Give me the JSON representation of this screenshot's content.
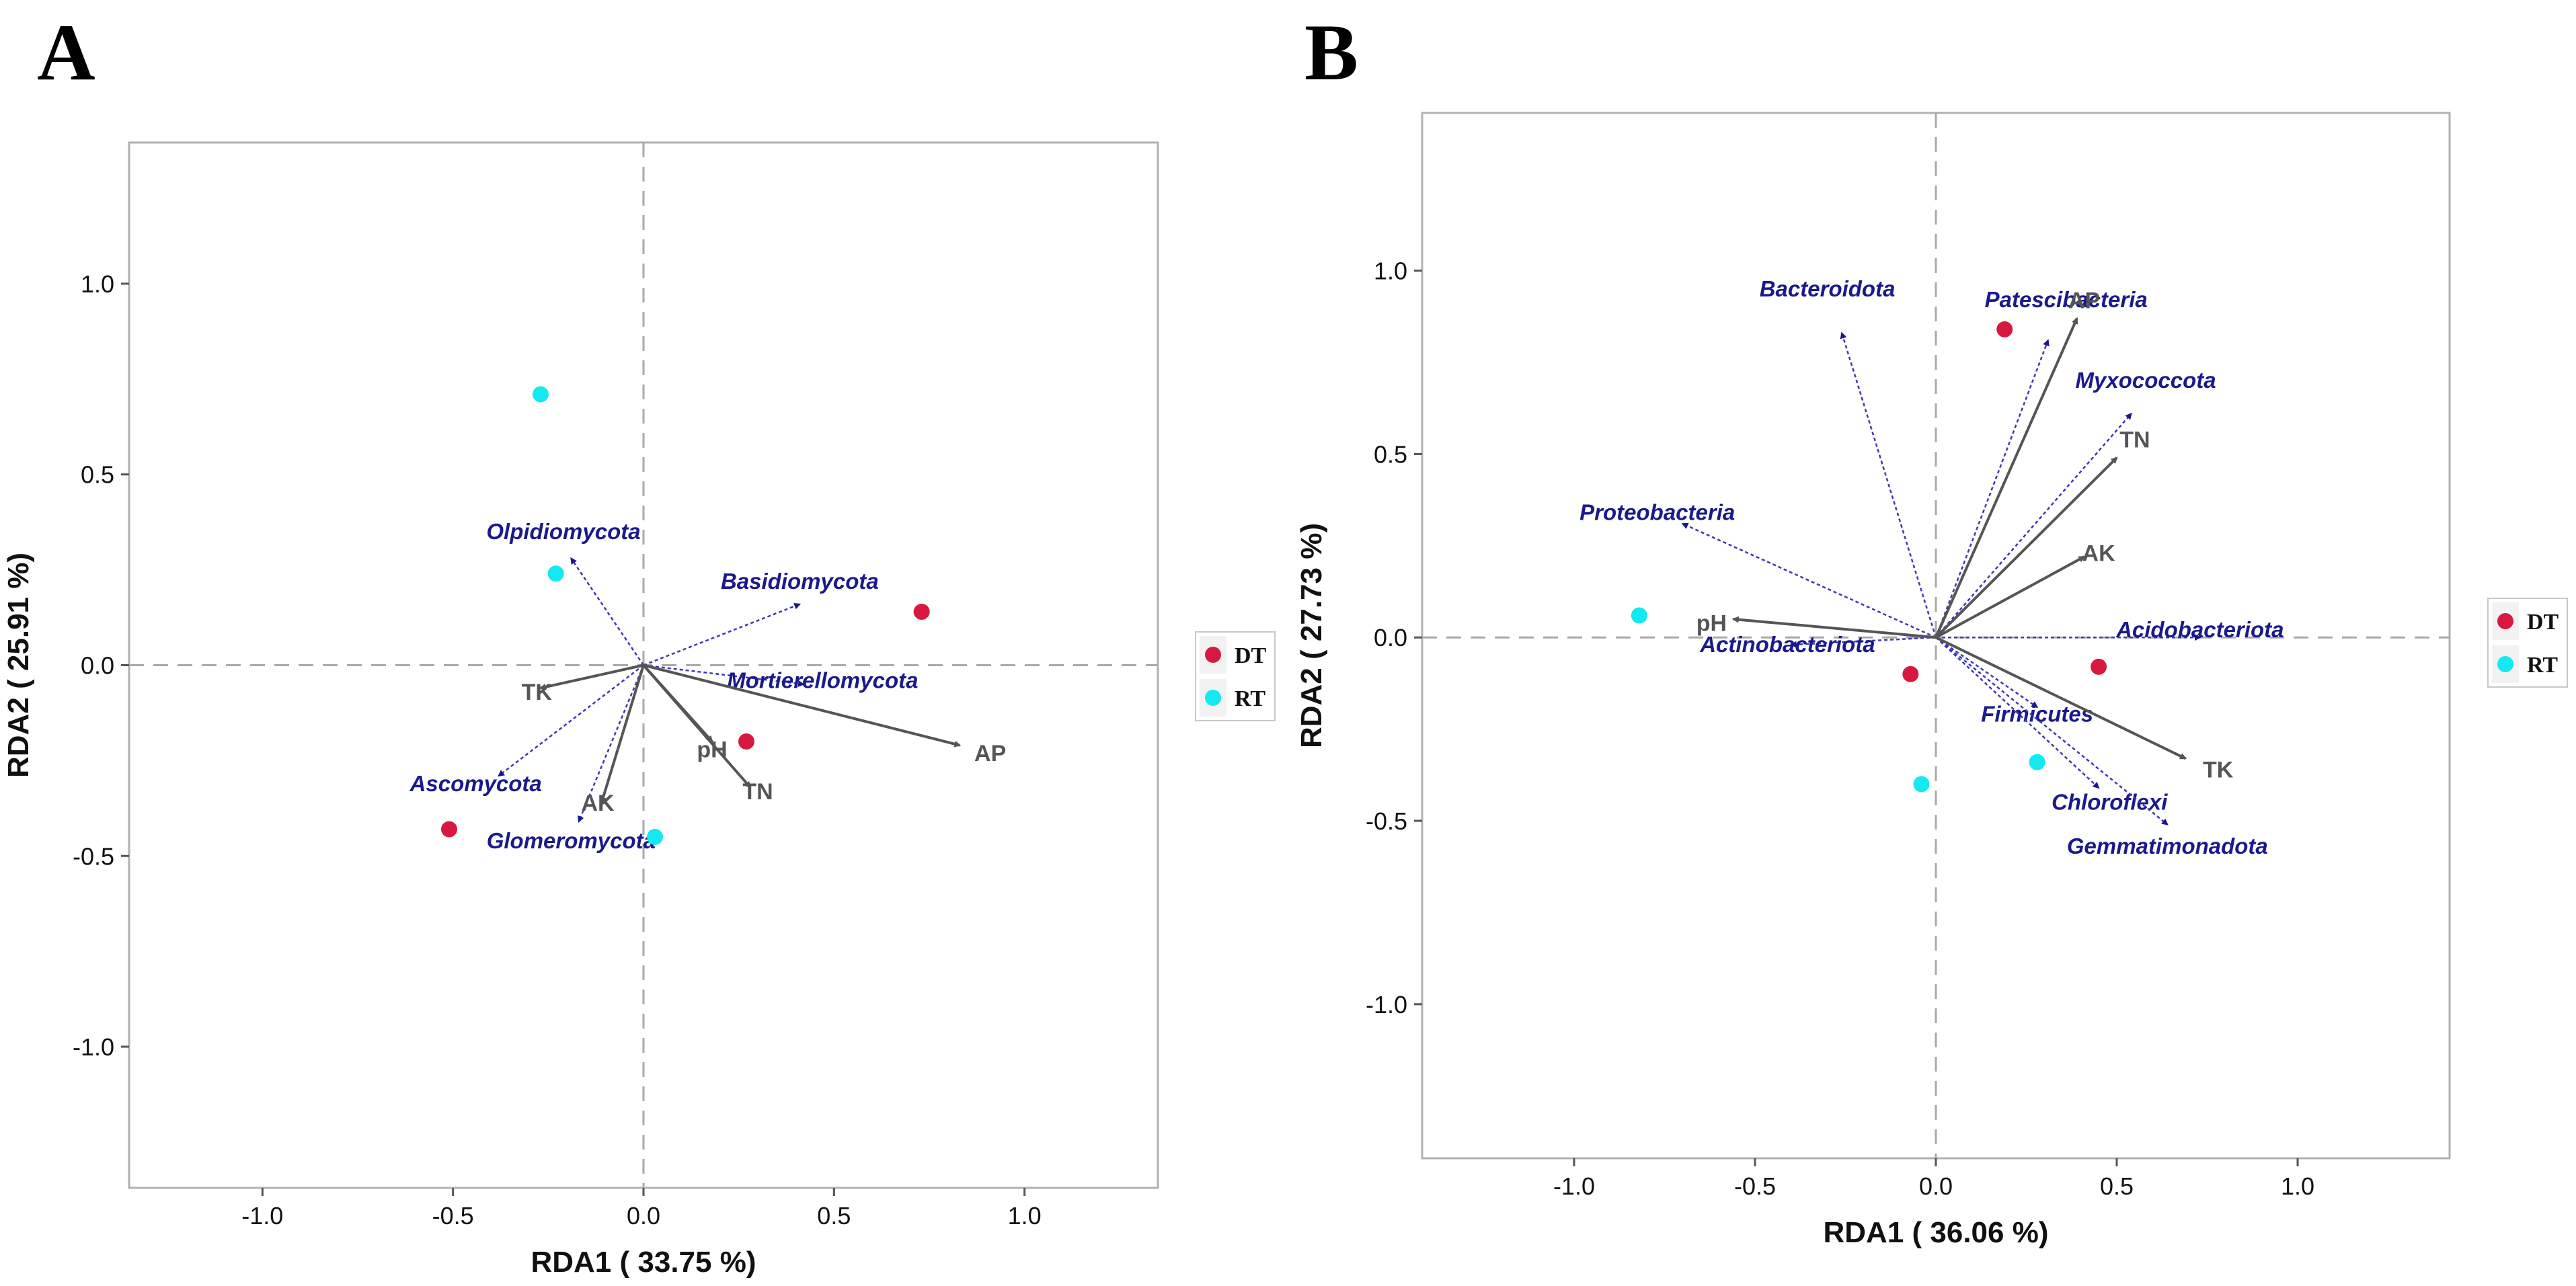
{
  "colors": {
    "DT": "#d7193f",
    "RT": "#14e8f0",
    "env_arrow": "#555555",
    "taxon_arrow": "#3b37b8",
    "taxon_text": "#1a1a8c",
    "frame": "#b0b0b0"
  },
  "chart_data": [
    {
      "panel": "A",
      "type": "scatter",
      "xlabel": "RDA1 ( 33.75 %)",
      "ylabel": "RDA2 ( 25.91 %)",
      "xlim": [
        -1.35,
        1.35
      ],
      "ylim": [
        -1.37,
        1.37
      ],
      "xticks": [
        {
          "v": -1.0,
          "label": "-1.0"
        },
        {
          "v": -0.5,
          "label": "-0.5"
        },
        {
          "v": 0.0,
          "label": "0.0"
        },
        {
          "v": 0.5,
          "label": "0.5"
        },
        {
          "v": 1.0,
          "label": "1.0"
        }
      ],
      "yticks": [
        {
          "v": -1.0,
          "label": "-1.0"
        },
        {
          "v": -0.5,
          "label": "-0.5"
        },
        {
          "v": 0.0,
          "label": "0.0"
        },
        {
          "v": 0.5,
          "label": "0.5"
        },
        {
          "v": 1.0,
          "label": "1.0"
        }
      ],
      "points": [
        {
          "group": "DT",
          "x": 0.73,
          "y": 0.14
        },
        {
          "group": "DT",
          "x": 0.27,
          "y": -0.2
        },
        {
          "group": "DT",
          "x": -0.51,
          "y": -0.43
        },
        {
          "group": "RT",
          "x": -0.27,
          "y": 0.71
        },
        {
          "group": "RT",
          "x": -0.23,
          "y": 0.24
        },
        {
          "group": "RT",
          "x": 0.03,
          "y": -0.45
        }
      ],
      "env_vectors": [
        {
          "name": "TK",
          "x": -0.27,
          "y": -0.06,
          "lx": -0.28,
          "ly": -0.07
        },
        {
          "name": "pH",
          "x": 0.18,
          "y": -0.2,
          "lx": 0.18,
          "ly": -0.22
        },
        {
          "name": "TN",
          "x": 0.28,
          "y": -0.32,
          "lx": 0.3,
          "ly": -0.33
        },
        {
          "name": "AK",
          "x": -0.11,
          "y": -0.36,
          "lx": -0.12,
          "ly": -0.36
        },
        {
          "name": "AP",
          "x": 0.83,
          "y": -0.21,
          "lx": 0.91,
          "ly": -0.23
        }
      ],
      "taxon_vectors": [
        {
          "name": "Olpidiomycota",
          "x": -0.19,
          "y": 0.28,
          "lx": -0.21,
          "ly": 0.33
        },
        {
          "name": "Basidiomycota",
          "x": 0.41,
          "y": 0.16,
          "lx": 0.41,
          "ly": 0.2
        },
        {
          "name": "Mortierellomycota",
          "x": 0.42,
          "y": -0.05,
          "lx": 0.47,
          "ly": -0.06
        },
        {
          "name": "Ascomycota",
          "x": -0.38,
          "y": -0.29,
          "lx": -0.44,
          "ly": -0.33
        },
        {
          "name": "Glomeromycota",
          "x": -0.17,
          "y": -0.41,
          "lx": -0.19,
          "ly": -0.48
        }
      ],
      "legend": [
        {
          "group": "DT",
          "label": "DT"
        },
        {
          "group": "RT",
          "label": "RT"
        }
      ]
    },
    {
      "panel": "B",
      "type": "scatter",
      "xlabel": "RDA1 ( 36.06 %)",
      "ylabel": "RDA2 ( 27.73 %)",
      "xlim": [
        -1.42,
        1.42
      ],
      "ylim": [
        -1.42,
        1.43
      ],
      "xticks": [
        {
          "v": -1.0,
          "label": "-1.0"
        },
        {
          "v": -0.5,
          "label": "-0.5"
        },
        {
          "v": 0.0,
          "label": "0.0"
        },
        {
          "v": 0.5,
          "label": "0.5"
        },
        {
          "v": 1.0,
          "label": "1.0"
        }
      ],
      "yticks": [
        {
          "v": -1.0,
          "label": "-1.0"
        },
        {
          "v": -0.5,
          "label": "-0.5"
        },
        {
          "v": 0.0,
          "label": "0.0"
        },
        {
          "v": 0.5,
          "label": "0.5"
        },
        {
          "v": 1.0,
          "label": "1.0"
        }
      ],
      "points": [
        {
          "group": "DT",
          "x": 0.19,
          "y": 0.84
        },
        {
          "group": "DT",
          "x": -0.07,
          "y": -0.1
        },
        {
          "group": "DT",
          "x": 0.45,
          "y": -0.08
        },
        {
          "group": "RT",
          "x": -0.82,
          "y": 0.06
        },
        {
          "group": "RT",
          "x": -0.04,
          "y": -0.4
        },
        {
          "group": "RT",
          "x": 0.28,
          "y": -0.34
        }
      ],
      "env_vectors": [
        {
          "name": "AP",
          "x": 0.39,
          "y": 0.87,
          "lx": 0.41,
          "ly": 0.92
        },
        {
          "name": "TN",
          "x": 0.5,
          "y": 0.49,
          "lx": 0.55,
          "ly": 0.54
        },
        {
          "name": "AK",
          "x": 0.41,
          "y": 0.22,
          "lx": 0.45,
          "ly": 0.23
        },
        {
          "name": "pH",
          "x": -0.56,
          "y": 0.05,
          "lx": -0.62,
          "ly": 0.04
        },
        {
          "name": "TK",
          "x": 0.69,
          "y": -0.33,
          "lx": 0.78,
          "ly": -0.36
        }
      ],
      "taxon_vectors": [
        {
          "name": "Bacteroidota",
          "x": -0.26,
          "y": 0.83,
          "lx": -0.3,
          "ly": 0.93
        },
        {
          "name": "Patescibacteria",
          "x": 0.31,
          "y": 0.81,
          "lx": 0.36,
          "ly": 0.9
        },
        {
          "name": "Myxococcota",
          "x": 0.54,
          "y": 0.61,
          "lx": 0.58,
          "ly": 0.68
        },
        {
          "name": "Proteobacteria",
          "x": -0.7,
          "y": 0.31,
          "lx": -0.77,
          "ly": 0.32
        },
        {
          "name": "Actinobacteriota",
          "x": -0.4,
          "y": -0.02,
          "lx": -0.41,
          "ly": -0.04
        },
        {
          "name": "Acidobacteriota",
          "x": 0.73,
          "y": 0.0,
          "lx": 0.73,
          "ly": 0.0
        },
        {
          "name": "Firmicutes",
          "x": 0.28,
          "y": -0.19,
          "lx": 0.28,
          "ly": -0.23
        },
        {
          "name": "Chloroflexi",
          "x": 0.45,
          "y": -0.41,
          "lx": 0.48,
          "ly": -0.47
        },
        {
          "name": "Gemmatimonadota",
          "x": 0.64,
          "y": -0.51,
          "lx": 0.64,
          "ly": -0.59
        }
      ],
      "legend": [
        {
          "group": "DT",
          "label": "DT"
        },
        {
          "group": "RT",
          "label": "RT"
        }
      ]
    }
  ]
}
